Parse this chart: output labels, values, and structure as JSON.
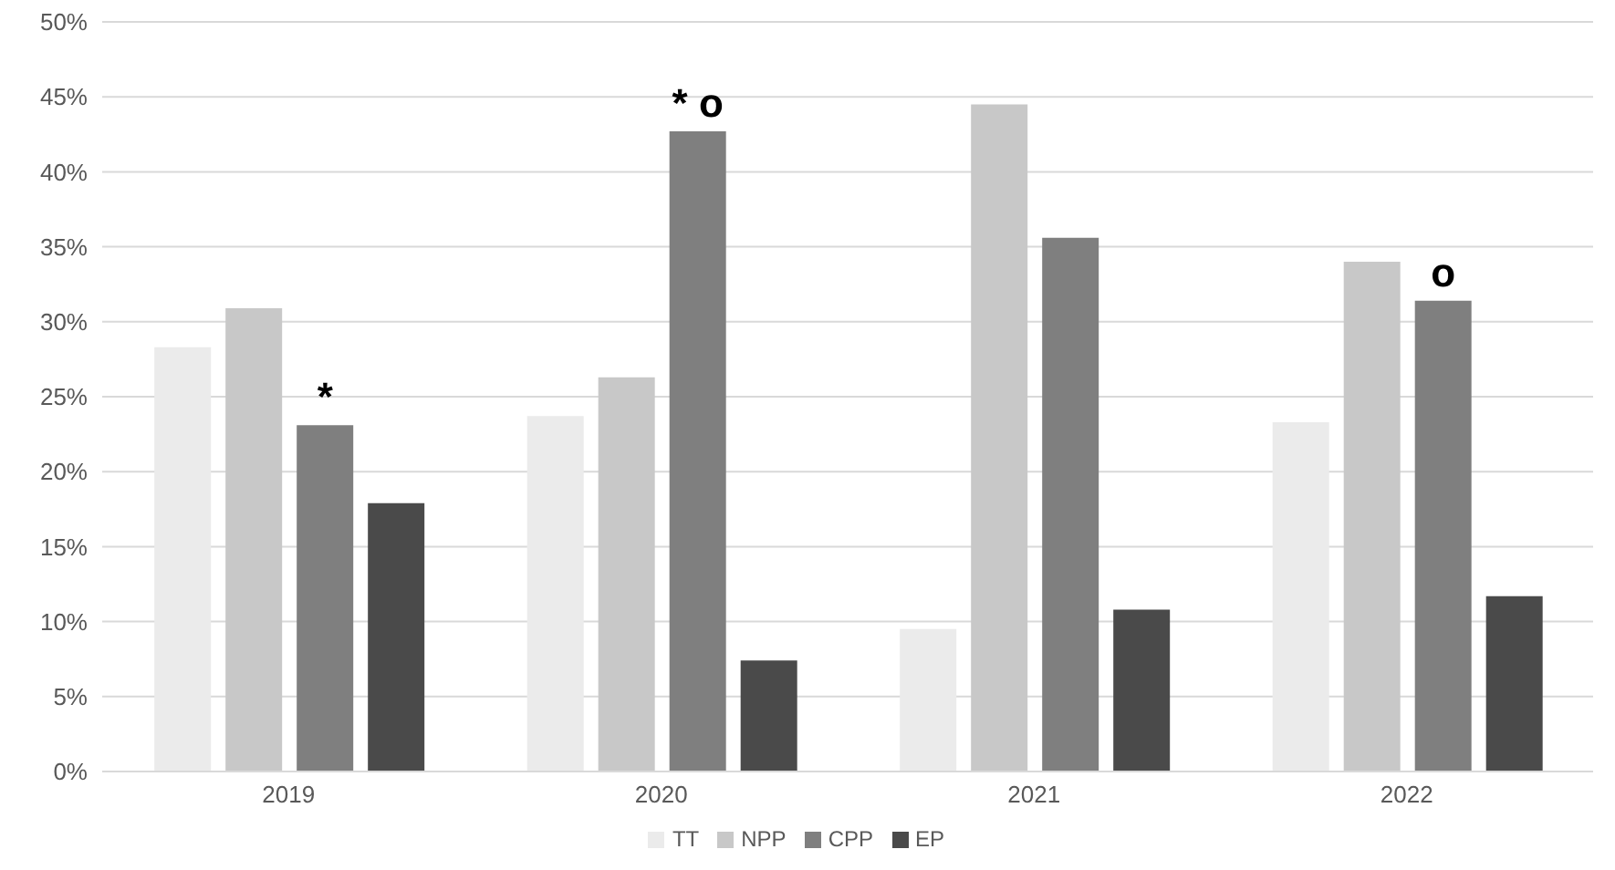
{
  "chart_data": {
    "type": "bar",
    "categories": [
      "2019",
      "2020",
      "2021",
      "2022"
    ],
    "series": [
      {
        "name": "TT",
        "color": "#ebebeb",
        "values": [
          28.3,
          23.7,
          9.5,
          23.3
        ]
      },
      {
        "name": "NPP",
        "color": "#c8c8c8",
        "values": [
          30.9,
          26.3,
          44.5,
          34.0
        ]
      },
      {
        "name": "CPP",
        "color": "#7f7f7f",
        "values": [
          23.1,
          42.7,
          35.6,
          31.4
        ]
      },
      {
        "name": "EP",
        "color": "#4a4a4a",
        "values": [
          17.9,
          7.4,
          10.8,
          11.7
        ]
      }
    ],
    "ylim": [
      0,
      50
    ],
    "yticks": [
      {
        "value": 0,
        "label": "0%"
      },
      {
        "value": 5,
        "label": "5%"
      },
      {
        "value": 10,
        "label": "10%"
      },
      {
        "value": 15,
        "label": "15%"
      },
      {
        "value": 20,
        "label": "20%"
      },
      {
        "value": 25,
        "label": "25%"
      },
      {
        "value": 30,
        "label": "30%"
      },
      {
        "value": 35,
        "label": "35%"
      },
      {
        "value": 40,
        "label": "40%"
      },
      {
        "value": 45,
        "label": "45%"
      },
      {
        "value": 50,
        "label": "50%"
      }
    ],
    "annotations": [
      {
        "text": "*",
        "x": "2019",
        "y": 23.1
      },
      {
        "text": "* o",
        "x": "2020",
        "y": 42.7
      },
      {
        "text": "o",
        "x": "2022",
        "y": 31.4
      }
    ],
    "grid": "y",
    "legend": "bottom"
  }
}
